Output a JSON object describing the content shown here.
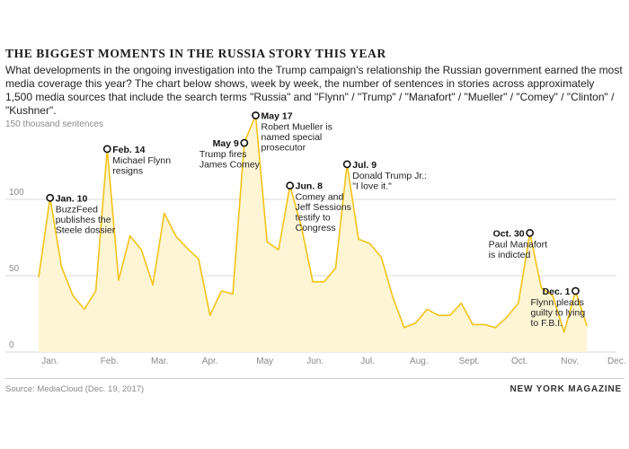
{
  "header": {
    "title": "THE BIGGEST MOMENTS IN THE RUSSIA STORY THIS YEAR",
    "subtitle": "What developments in the ongoing investigation into the Trump campaign's relationship the Russian government earned the most media coverage this year? The chart below shows, week by week, the number of sentences in stories across approximately 1,500 media sources that include the search terms \"Russia\" and \"Flynn\" / \"Trump\" / \"Manafort\" / \"Mueller\" / \"Comey\" / \"Clinton\" / \"Kushner\"."
  },
  "footer": {
    "source": "Source: MediaCloud (Dec. 19, 2017)",
    "publisher": "NEW YORK MAGAZINE"
  },
  "chart_data": {
    "type": "area",
    "ylabel": "150 thousand sentences",
    "ylim": [
      0,
      150
    ],
    "yticks": [
      {
        "value": 50,
        "label": "50"
      },
      {
        "value": 100,
        "label": "100"
      },
      {
        "value": 0,
        "label": "0"
      }
    ],
    "xlim": [
      0,
      50.5
    ],
    "months": [
      {
        "label": "Jan.",
        "week": 1
      },
      {
        "label": "Feb.",
        "week": 6.2
      },
      {
        "label": "Mar.",
        "week": 10.6
      },
      {
        "label": "Apr.",
        "week": 15
      },
      {
        "label": "May",
        "week": 19.8
      },
      {
        "label": "Jun.",
        "week": 24.2
      },
      {
        "label": "Jul.",
        "week": 28.8
      },
      {
        "label": "Aug.",
        "week": 33.3
      },
      {
        "label": "Sept.",
        "week": 37.7
      },
      {
        "label": "Oct.",
        "week": 42.1
      },
      {
        "label": "Nov.",
        "week": 46.5
      },
      {
        "label": "Dec.",
        "week": 50.6
      }
    ],
    "series": [
      {
        "color": "#f2c318",
        "fill": "#fdf5d4",
        "values": [
          49,
          101,
          56,
          37,
          28,
          40,
          133,
          47,
          76,
          67,
          44,
          91,
          76,
          68,
          61,
          24,
          40,
          38,
          137,
          155,
          72,
          67,
          109,
          82,
          46,
          46,
          55,
          123,
          74,
          71,
          62,
          36,
          16,
          19,
          28,
          24,
          24,
          32,
          18,
          18,
          16,
          23,
          32,
          78,
          42,
          37,
          13,
          40,
          17
        ]
      }
    ],
    "annotations": [
      {
        "week": 1,
        "value": 101,
        "date": "Jan. 10",
        "text": [
          "BuzzFeed",
          "publishes the",
          "Steele dossier"
        ],
        "anchor": "right"
      },
      {
        "week": 6,
        "value": 133,
        "date": "Feb. 14",
        "text": [
          "Michael Flynn",
          "resigns"
        ],
        "anchor": "right"
      },
      {
        "week": 18,
        "value": 137,
        "date": "May 9",
        "text": [
          "Trump fires",
          "James Comey"
        ],
        "anchor": "left"
      },
      {
        "week": 19,
        "value": 155,
        "date": "May 17",
        "text": [
          "Robert Mueller is",
          "named special",
          "prosecutor"
        ],
        "anchor": "right"
      },
      {
        "week": 22,
        "value": 109,
        "date": "Jun. 8",
        "text": [
          "Comey and",
          "Jeff Sessions",
          "testify to",
          "Congress"
        ],
        "anchor": "right"
      },
      {
        "week": 27,
        "value": 123,
        "date": "Jul. 9",
        "text": [
          "Donald Trump Jr.:",
          "\"I love it.\""
        ],
        "anchor": "right"
      },
      {
        "week": 43,
        "value": 78,
        "date": "Oct. 30",
        "text": [
          "Paul Manafort",
          "is indicted"
        ],
        "anchor": "left"
      },
      {
        "week": 47,
        "value": 40,
        "date": "Dec. 1",
        "text": [
          "Flynn pleads",
          "guilty to lying",
          "to F.B.I."
        ],
        "anchor": "left"
      }
    ]
  }
}
